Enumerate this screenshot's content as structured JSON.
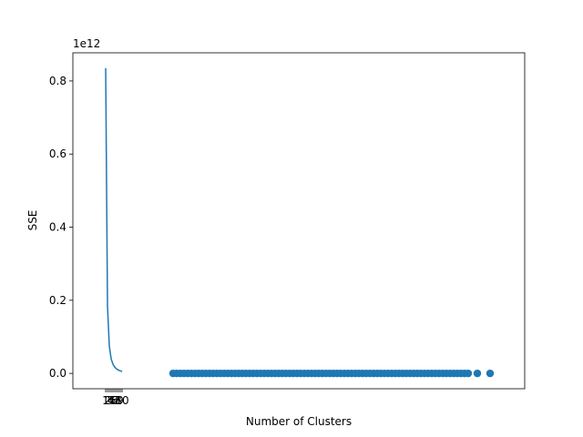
{
  "chart_data": {
    "type": "line",
    "xlabel": "Number of Clusters",
    "ylabel": "SSE",
    "y_scale_label": "1e12",
    "xlim": [
      -17,
      231
    ],
    "ylim": [
      -0.042,
      0.877
    ],
    "x_ticks": [
      "1",
      "2",
      "3",
      "4",
      "5",
      "6",
      "7",
      "8",
      "9",
      "10"
    ],
    "y_ticks": [
      {
        "value": 0.0,
        "label": "0.0"
      },
      {
        "value": 0.2,
        "label": "0.2"
      },
      {
        "value": 0.4,
        "label": "0.4"
      },
      {
        "value": 0.6,
        "label": "0.6"
      },
      {
        "value": 0.8,
        "label": "0.8"
      }
    ],
    "line_series": {
      "x": [
        1,
        2,
        3,
        4,
        5,
        6,
        7,
        8,
        9,
        10
      ],
      "y": [
        0.835,
        0.185,
        0.075,
        0.04,
        0.025,
        0.017,
        0.012,
        0.009,
        0.007,
        0.005
      ]
    },
    "scatter_series": {
      "x": [
        38,
        40,
        42,
        44,
        46,
        48,
        50,
        52,
        54,
        56,
        58,
        60,
        62,
        64,
        66,
        68,
        70,
        72,
        74,
        76,
        78,
        80,
        82,
        84,
        86,
        88,
        90,
        92,
        94,
        96,
        98,
        100,
        102,
        104,
        106,
        108,
        110,
        112,
        114,
        116,
        118,
        120,
        122,
        124,
        126,
        128,
        130,
        132,
        134,
        136,
        138,
        140,
        142,
        144,
        146,
        148,
        150,
        152,
        154,
        156,
        158,
        160,
        162,
        164,
        166,
        168,
        170,
        172,
        174,
        176,
        178,
        180,
        182,
        184,
        186,
        188,
        190,
        192,
        194,
        196,
        198,
        200,
        205,
        212
      ],
      "y": [
        0,
        0,
        0,
        0,
        0,
        0,
        0,
        0,
        0,
        0,
        0,
        0,
        0,
        0,
        0,
        0,
        0,
        0,
        0,
        0,
        0,
        0,
        0,
        0,
        0,
        0,
        0,
        0,
        0,
        0,
        0,
        0,
        0,
        0,
        0,
        0,
        0,
        0,
        0,
        0,
        0,
        0,
        0,
        0,
        0,
        0,
        0,
        0,
        0,
        0,
        0,
        0,
        0,
        0,
        0,
        0,
        0,
        0,
        0,
        0,
        0,
        0,
        0,
        0,
        0,
        0,
        0,
        0,
        0,
        0,
        0,
        0,
        0,
        0,
        0,
        0,
        0,
        0,
        0,
        0,
        0,
        0,
        0,
        0
      ]
    },
    "grid": false,
    "color": "#1f77b4"
  }
}
